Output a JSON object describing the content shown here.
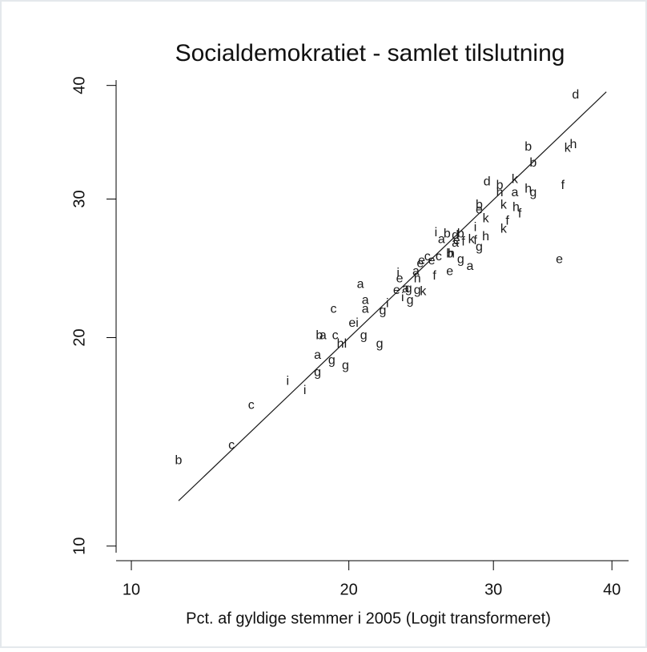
{
  "chart_data": {
    "type": "scatter",
    "title": "Socialdemokratiet - samlet tilslutning",
    "x_label": "Pct. af gyldige stemmer i 2005 (Logit transformeret)",
    "xscale": "logit",
    "yscale": "logit",
    "xlim": [
      9.5,
      41.5
    ],
    "ylim": [
      9.5,
      40.5
    ],
    "xticks": [
      10,
      20,
      30,
      40
    ],
    "yticks": [
      10,
      20,
      30,
      40
    ],
    "series": [
      {
        "color": "#1a1a1a",
        "labels": [
          "b",
          "c",
          "c",
          "i",
          "i",
          "g",
          "a",
          "b",
          "a",
          "g",
          "g",
          "c",
          "c",
          "h",
          "l",
          "e",
          "i",
          "g",
          "g",
          "a",
          "a",
          "a",
          "g",
          "i",
          "i",
          "e",
          "e",
          "a",
          "i",
          "g",
          "g",
          "h",
          "a",
          "e",
          "g",
          "k",
          "e",
          "c",
          "e",
          "f",
          "c",
          "i",
          "a",
          "b",
          "h",
          "e",
          "b",
          "a",
          "e",
          "d",
          "b",
          "f",
          "g",
          "a",
          "k",
          "f",
          "g",
          "h",
          "i",
          "k",
          "e",
          "b",
          "d",
          "b",
          "h",
          "a",
          "g",
          "h",
          "k",
          "k",
          "h",
          "f",
          "f",
          "k",
          "b",
          "b",
          "k",
          "h",
          "f",
          "e",
          "d"
        ],
        "x": [
          11.7,
          13.9,
          14.8,
          16.6,
          17.5,
          18.2,
          18.2,
          18.3,
          18.5,
          19.0,
          19.8,
          19.1,
          19.2,
          19.5,
          19.8,
          20.2,
          20.5,
          20.9,
          21.9,
          20.7,
          21.0,
          21.0,
          22.1,
          22.4,
          23.1,
          23.2,
          23.0,
          23.6,
          23.4,
          23.9,
          23.8,
          24.4,
          24.3,
          24.6,
          24.4,
          24.8,
          24.7,
          25.1,
          25.4,
          25.6,
          25.9,
          25.7,
          26.1,
          26.5,
          26.8,
          26.7,
          26.7,
          27.1,
          27.2,
          27.1,
          27.5,
          27.7,
          27.5,
          28.2,
          28.3,
          28.6,
          28.9,
          29.4,
          28.6,
          29.4,
          28.9,
          28.9,
          29.5,
          30.5,
          30.5,
          31.7,
          33.2,
          32.8,
          31.7,
          30.8,
          31.8,
          32.1,
          31.1,
          30.8,
          32.8,
          33.2,
          36.1,
          36.6,
          35.7,
          35.4,
          36.8
        ],
        "values": [
          13.4,
          14.1,
          16.1,
          17.4,
          16.9,
          17.9,
          18.9,
          20.1,
          20.1,
          18.6,
          18.3,
          21.8,
          20.1,
          19.6,
          19.6,
          20.9,
          20.9,
          20.1,
          19.6,
          23.5,
          22.4,
          21.8,
          21.7,
          22.2,
          24.3,
          23.9,
          23.1,
          23.2,
          22.6,
          22.4,
          23.2,
          23.9,
          24.4,
          25.0,
          23.1,
          23.0,
          25.2,
          25.5,
          25.2,
          24.1,
          25.5,
          27.3,
          26.8,
          27.2,
          25.7,
          24.4,
          25.7,
          26.5,
          26.7,
          27.1,
          27.2,
          26.6,
          25.3,
          24.8,
          26.8,
          26.7,
          26.2,
          27.0,
          27.7,
          28.4,
          29.1,
          29.5,
          31.4,
          31.1,
          30.5,
          30.5,
          30.5,
          30.8,
          31.6,
          29.5,
          29.3,
          28.8,
          28.2,
          27.6,
          34.4,
          33.0,
          34.3,
          34.6,
          31.1,
          25.3,
          39.1
        ]
      }
    ],
    "fit": {
      "color": "#1a1a1a",
      "x": [
        11.7,
        39.5
      ],
      "values": [
        11.7,
        39.4
      ]
    }
  }
}
